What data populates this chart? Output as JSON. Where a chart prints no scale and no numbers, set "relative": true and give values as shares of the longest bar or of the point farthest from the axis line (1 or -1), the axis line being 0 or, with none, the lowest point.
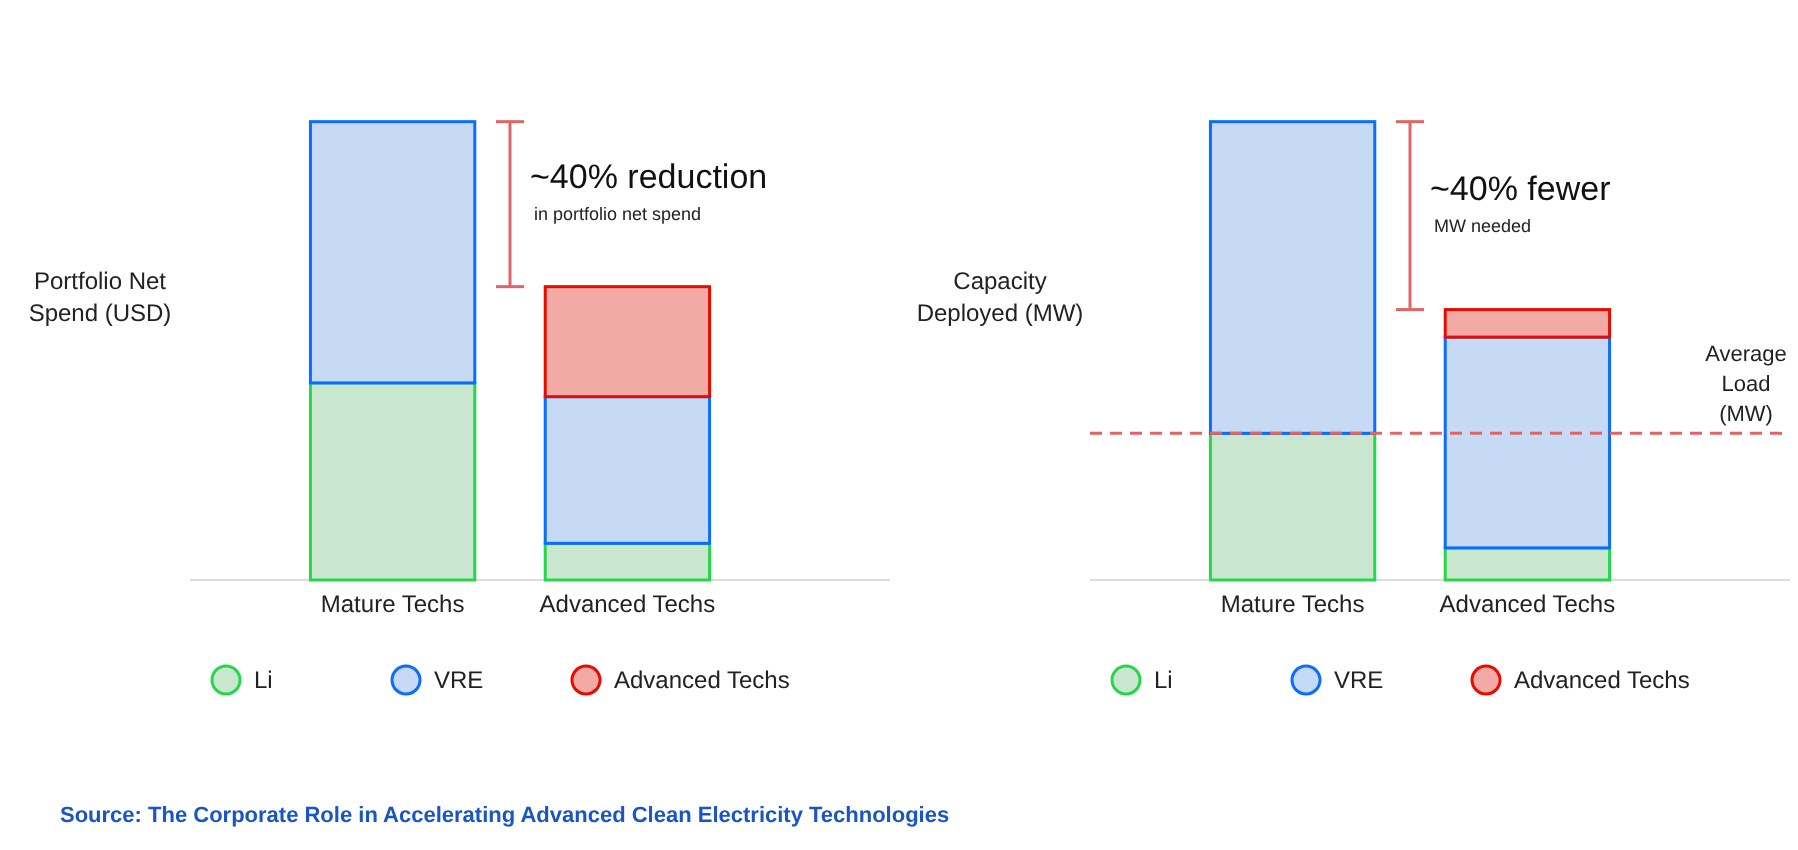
{
  "chart_data": [
    {
      "type": "bar",
      "stacked": true,
      "relative": true,
      "ylabel": "Portfolio Net Spend (USD)",
      "categories": [
        "Mature Techs",
        "Advanced Techs"
      ],
      "series": [
        {
          "name": "Li",
          "color": "#c9e7cf",
          "values": [
            0.43,
            0.08
          ]
        },
        {
          "name": "VRE",
          "color": "#c6d9f5",
          "values": [
            0.57,
            0.32
          ]
        },
        {
          "name": "Advanced Techs",
          "color": "#f2aaa6",
          "values": [
            0,
            0.24
          ]
        }
      ],
      "legend": "bottom",
      "annotations": [
        "~40% reduction",
        "in portfolio net spend"
      ]
    },
    {
      "type": "bar",
      "stacked": true,
      "relative": true,
      "ylabel": "Capacity Deployed (MW)",
      "categories": [
        "Mature Techs",
        "Advanced Techs"
      ],
      "series": [
        {
          "name": "Li",
          "color": "#c9e7cf",
          "values": [
            0.32,
            0.07
          ]
        },
        {
          "name": "VRE",
          "color": "#c6d9f5",
          "values": [
            0.68,
            0.46
          ]
        },
        {
          "name": "Advanced Techs",
          "color": "#f2aaa6",
          "values": [
            0,
            0.06
          ]
        }
      ],
      "ref_lines": [
        {
          "axis": "y",
          "value": 0.32,
          "label": "Average Load (MW)",
          "color": "#e06666",
          "line_style": "dashed"
        }
      ],
      "legend": "bottom",
      "annotations": [
        "~40% fewer",
        "MW needed",
        "Source: The Corporate Role in Accelerating Advanced Clean Electricity Technologies"
      ]
    }
  ]
}
